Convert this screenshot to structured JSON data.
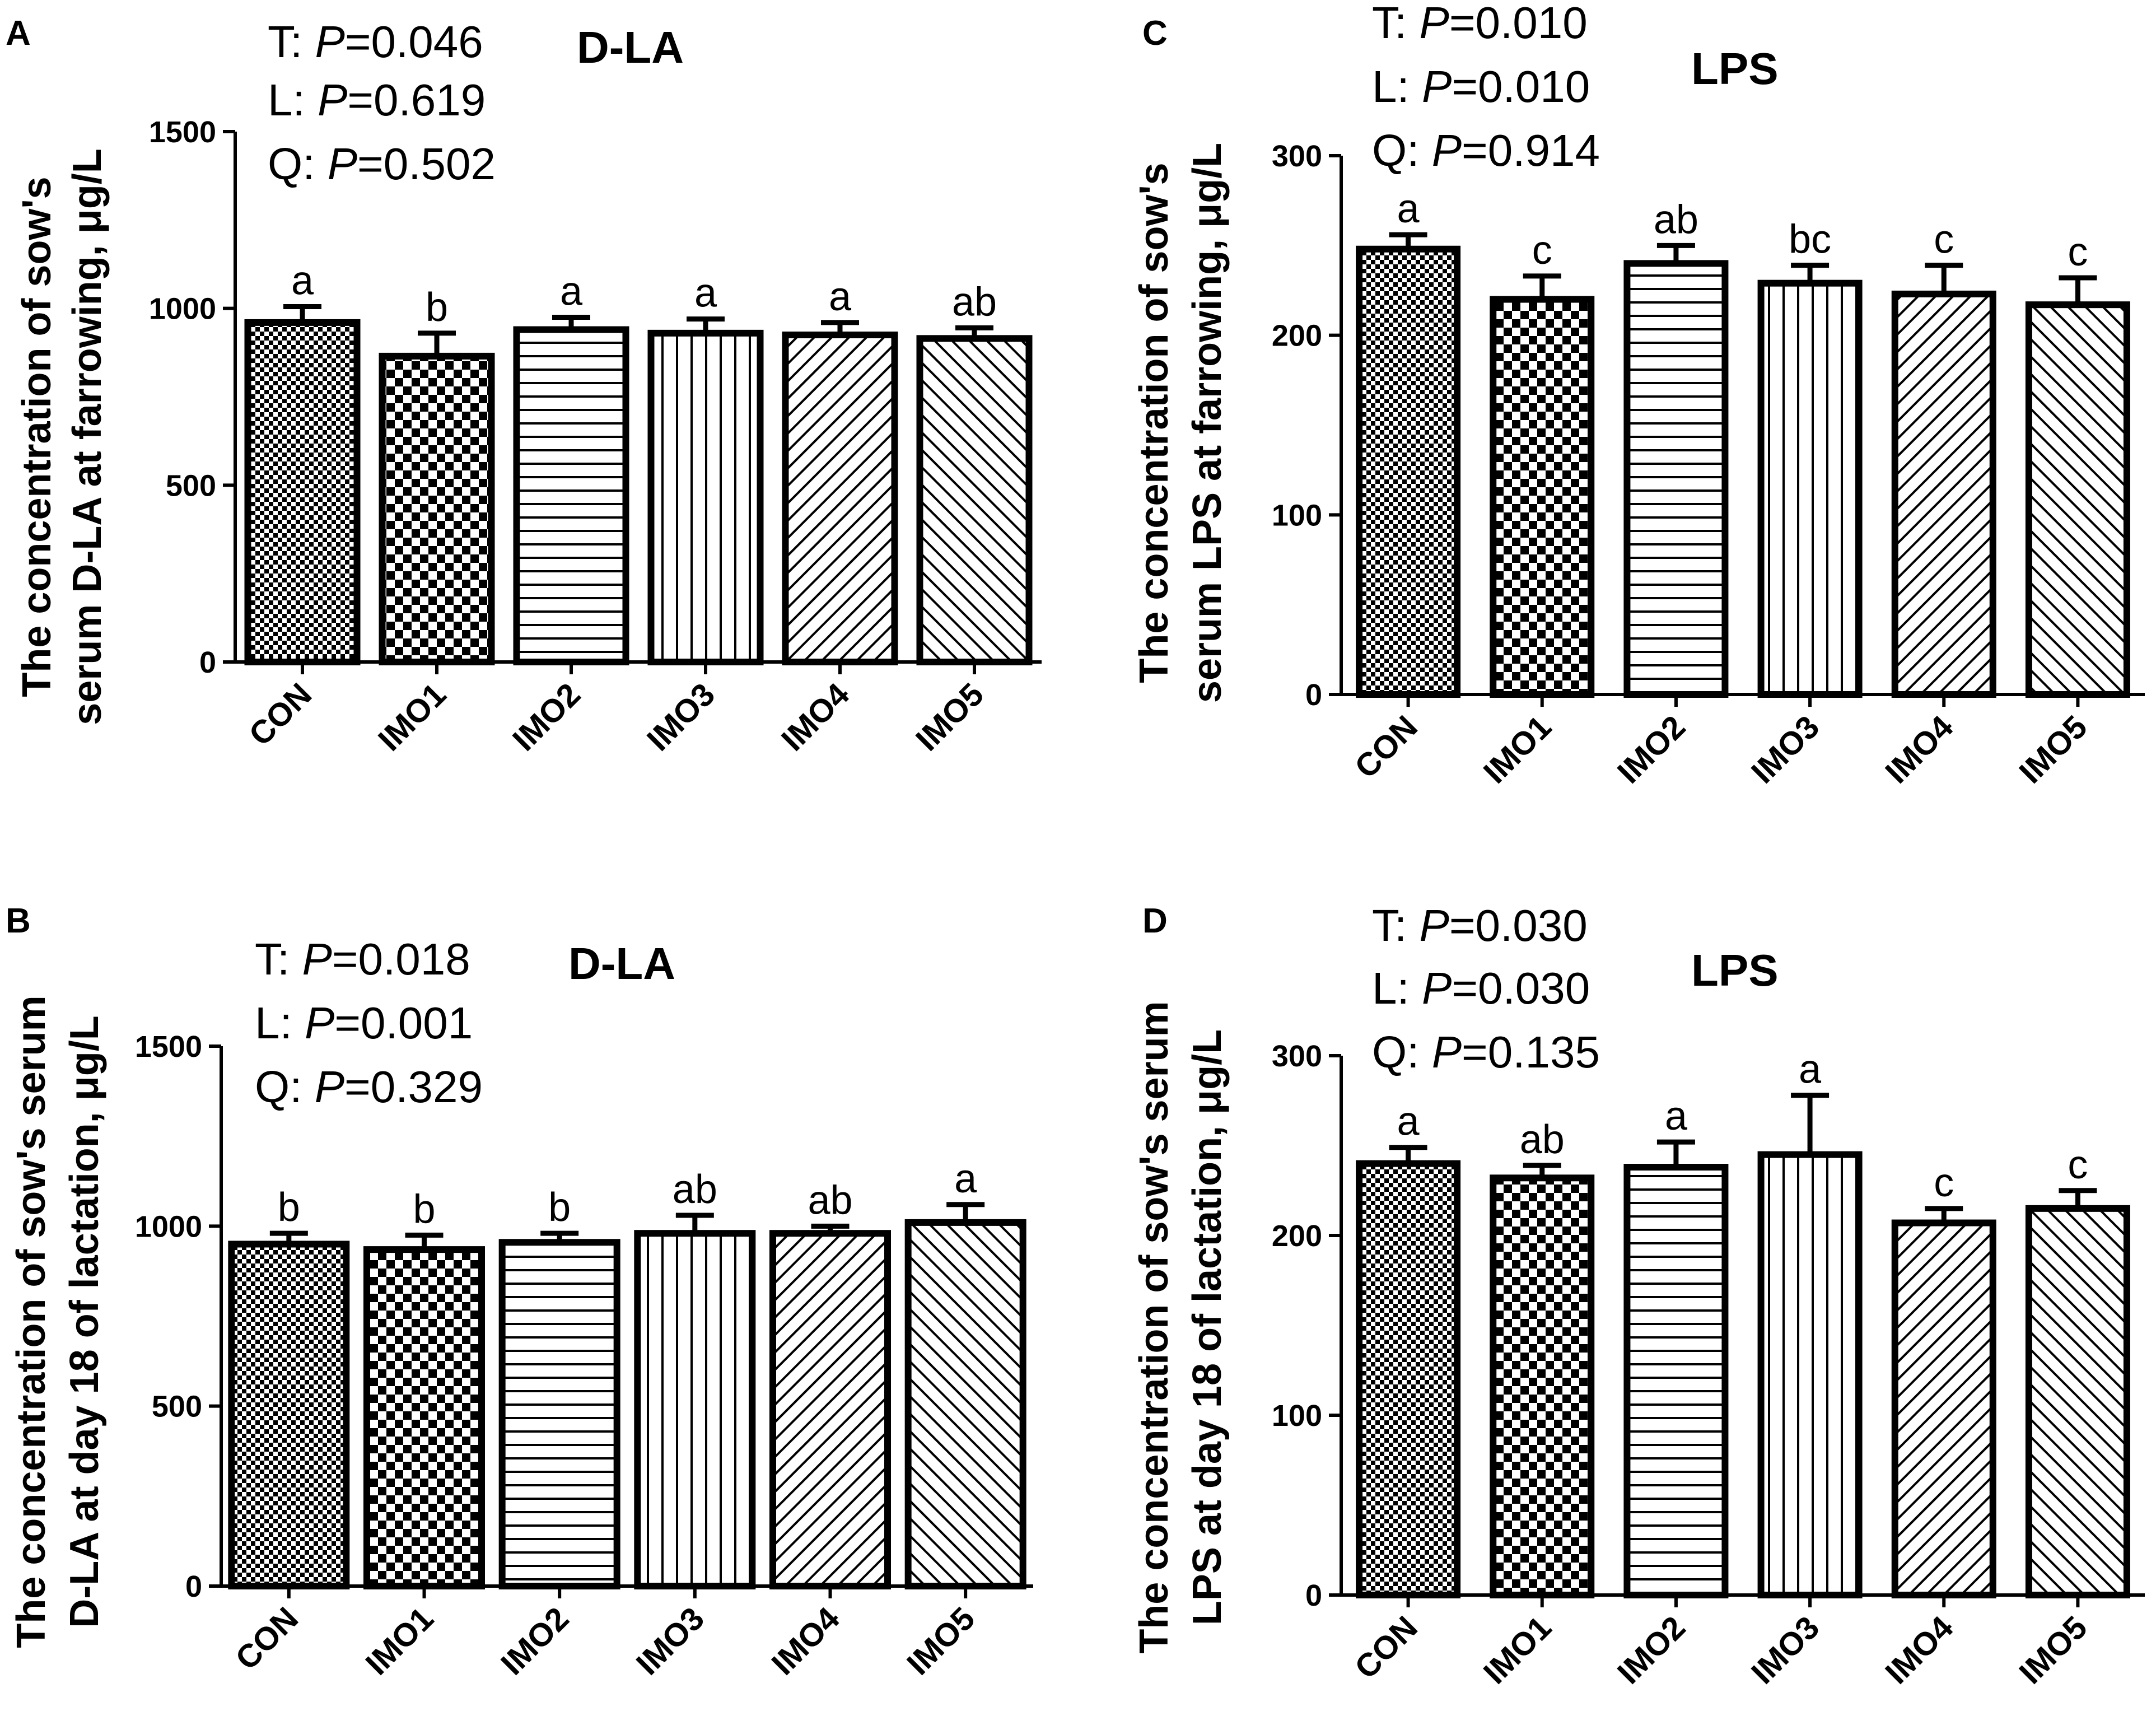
{
  "figure": {
    "panels": [
      {
        "letter": "A",
        "title": "D-LA",
        "stats": [
          {
            "prefix": "T: ",
            "p": "P",
            "value": "=0.046"
          },
          {
            "prefix": "L: ",
            "p": "P",
            "value": "=0.619"
          },
          {
            "prefix": "Q: ",
            "p": "P",
            "value": "=0.502"
          }
        ],
        "ylabel_lines": [
          "The concentration of sow's",
          "serum D-LA at farrowing, μg/L"
        ]
      },
      {
        "letter": "C",
        "title": "LPS",
        "stats": [
          {
            "prefix": "T: ",
            "p": "P",
            "value": "=0.010"
          },
          {
            "prefix": "L: ",
            "p": "P",
            "value": "=0.010"
          },
          {
            "prefix": "Q: ",
            "p": "P",
            "value": "=0.914"
          }
        ],
        "ylabel_lines": [
          "The concentration of sow's",
          "serum LPS at farrowing, μg/L"
        ]
      },
      {
        "letter": "B",
        "title": "D-LA",
        "stats": [
          {
            "prefix": "T: ",
            "p": "P",
            "value": "=0.018"
          },
          {
            "prefix": "L: ",
            "p": "P",
            "value": "=0.001"
          },
          {
            "prefix": "Q: ",
            "p": "P",
            "value": "=0.329"
          }
        ],
        "ylabel_lines": [
          "The concentration of sow's serum",
          "D-LA at day 18 of lactation, μg/L"
        ]
      },
      {
        "letter": "D",
        "title": "LPS",
        "stats": [
          {
            "prefix": "T: ",
            "p": "P",
            "value": "=0.030"
          },
          {
            "prefix": "L: ",
            "p": "P",
            "value": "=0.030"
          },
          {
            "prefix": "Q: ",
            "p": "P",
            "value": "=0.135"
          }
        ],
        "ylabel_lines": [
          "The concentration of sow's serum",
          "LPS at day 18 of lactation, μg/L"
        ]
      }
    ]
  },
  "chart_data": [
    {
      "panel": "A",
      "type": "bar",
      "title": "D-LA",
      "categories": [
        "CON",
        "IMO1",
        "IMO2",
        "IMO3",
        "IMO4",
        "IMO5"
      ],
      "values": [
        960,
        865,
        940,
        930,
        925,
        915
      ],
      "errors": [
        45,
        65,
        35,
        40,
        35,
        30
      ],
      "sig_letters": [
        "a",
        "b",
        "a",
        "a",
        "a",
        "ab"
      ],
      "ylabel": "The concentration of sow's serum D-LA at farrowing, μg/L",
      "ylim": [
        0,
        1500
      ],
      "yticks": [
        0,
        500,
        1000,
        1500
      ],
      "patterns": [
        "fine-check",
        "check",
        "hstripe",
        "vstripe",
        "diag-right",
        "diag-left"
      ]
    },
    {
      "panel": "C",
      "type": "bar",
      "title": "LPS",
      "categories": [
        "CON",
        "IMO1",
        "IMO2",
        "IMO3",
        "IMO4",
        "IMO5"
      ],
      "values": [
        248,
        220,
        240,
        229,
        223,
        217
      ],
      "errors": [
        8,
        13,
        10,
        10,
        16,
        15
      ],
      "sig_letters": [
        "a",
        "c",
        "ab",
        "bc",
        "c",
        "c"
      ],
      "ylabel": "The concentration of sow's serum LPS at farrowing, μg/L",
      "ylim": [
        0,
        300
      ],
      "yticks": [
        0,
        100,
        200,
        300
      ],
      "patterns": [
        "fine-check",
        "check",
        "hstripe",
        "vstripe",
        "diag-right",
        "diag-left"
      ]
    },
    {
      "panel": "B",
      "type": "bar",
      "title": "D-LA",
      "categories": [
        "CON",
        "IMO1",
        "IMO2",
        "IMO3",
        "IMO4",
        "IMO5"
      ],
      "values": [
        950,
        935,
        955,
        980,
        980,
        1010
      ],
      "errors": [
        30,
        40,
        25,
        50,
        20,
        50
      ],
      "sig_letters": [
        "b",
        "b",
        "b",
        "ab",
        "ab",
        "a"
      ],
      "ylabel": "The concentration of sow's serum D-LA at day 18 of lactation, μg/L",
      "ylim": [
        0,
        1500
      ],
      "yticks": [
        0,
        500,
        1000,
        1500
      ],
      "patterns": [
        "fine-check",
        "check",
        "hstripe",
        "vstripe",
        "diag-right",
        "diag-left"
      ]
    },
    {
      "panel": "D",
      "type": "bar",
      "title": "LPS",
      "categories": [
        "CON",
        "IMO1",
        "IMO2",
        "IMO3",
        "IMO4",
        "IMO5"
      ],
      "values": [
        240,
        232,
        238,
        245,
        207,
        215
      ],
      "errors": [
        9,
        7,
        14,
        33,
        8,
        10
      ],
      "sig_letters": [
        "a",
        "ab",
        "a",
        "a",
        "c",
        "c"
      ],
      "ylabel": "The concentration of sow's serum LPS at day 18 of lactation, μg/L",
      "ylim": [
        0,
        300
      ],
      "yticks": [
        0,
        100,
        200,
        300
      ],
      "patterns": [
        "fine-check",
        "check",
        "hstripe",
        "vstripe",
        "diag-right",
        "diag-left"
      ]
    }
  ]
}
